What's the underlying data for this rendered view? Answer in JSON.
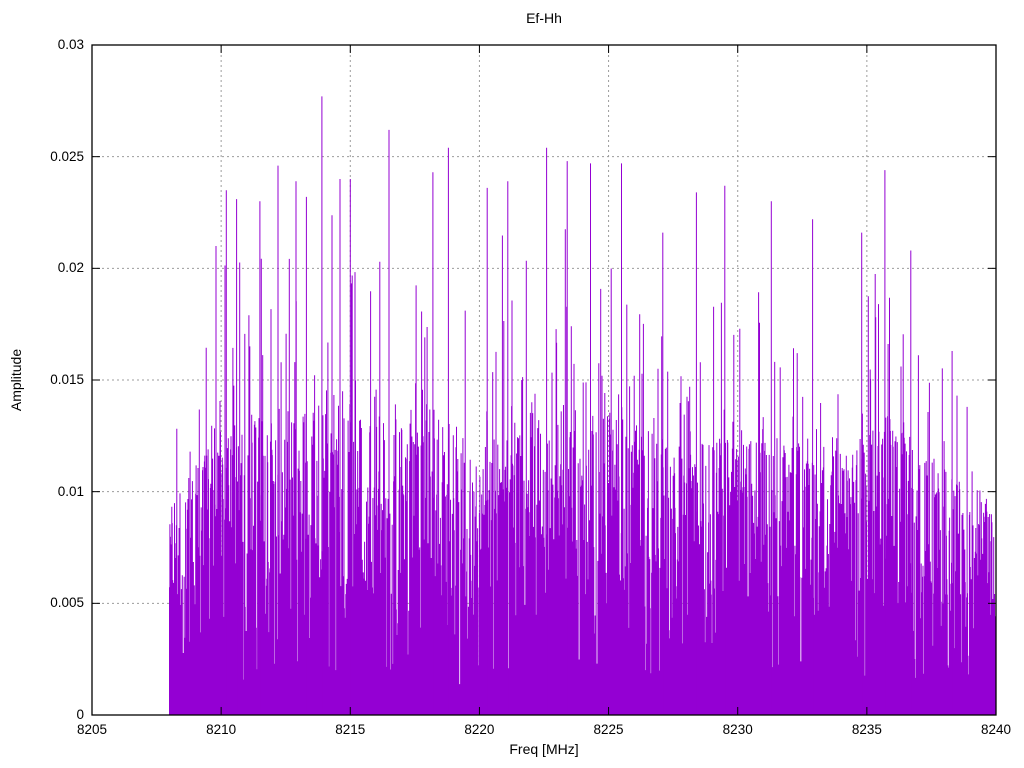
{
  "chart_data": {
    "type": "impulses",
    "title": "Ef-Hh",
    "xlabel": "Freq [MHz]",
    "ylabel": "Amplitude",
    "xlim": [
      8205,
      8240
    ],
    "ylim": [
      0,
      0.03
    ],
    "xticks": {
      "values": [
        8205,
        8210,
        8215,
        8220,
        8225,
        8230,
        8235,
        8240
      ],
      "labels": [
        "8205",
        "8210",
        "8215",
        "8220",
        "8225",
        "8230",
        "8235",
        "8240"
      ]
    },
    "yticks": {
      "values": [
        0,
        0.005,
        0.01,
        0.015,
        0.02,
        0.025,
        0.03
      ],
      "labels": [
        "0",
        "0.005",
        "0.01",
        "0.015",
        "0.02",
        "0.025",
        "0.03"
      ]
    },
    "grid": true,
    "legend": "none",
    "series_color": "#9400D3",
    "grid_color": "#9c9c9c",
    "axis_color": "#000000",
    "signal_band": [
      8208,
      8240
    ],
    "envelope": {
      "freq": [
        8208,
        8209,
        8210,
        8211,
        8212,
        8213,
        8214,
        8215,
        8216,
        8217,
        8218,
        8219,
        8220,
        8221,
        8222,
        8223,
        8224,
        8225,
        8226,
        8227,
        8228,
        8229,
        8230,
        8231,
        8232,
        8233,
        8234,
        8235,
        8236,
        8237,
        8238,
        8239,
        8240
      ],
      "body": [
        0.01,
        0.0115,
        0.0125,
        0.013,
        0.0135,
        0.0135,
        0.014,
        0.0135,
        0.013,
        0.013,
        0.014,
        0.0135,
        0.013,
        0.013,
        0.0135,
        0.013,
        0.013,
        0.0135,
        0.013,
        0.0125,
        0.013,
        0.0125,
        0.0125,
        0.013,
        0.012,
        0.012,
        0.0125,
        0.013,
        0.0135,
        0.012,
        0.011,
        0.01,
        0.009
      ],
      "ceiling": [
        0.013,
        0.015,
        0.021,
        0.021,
        0.022,
        0.022,
        0.023,
        0.022,
        0.022,
        0.021,
        0.022,
        0.022,
        0.021,
        0.022,
        0.022,
        0.022,
        0.022,
        0.022,
        0.02,
        0.019,
        0.021,
        0.021,
        0.02,
        0.021,
        0.019,
        0.019,
        0.02,
        0.02,
        0.022,
        0.019,
        0.016,
        0.014,
        0.012
      ]
    },
    "peaks": [
      [
        8209.8,
        0.021
      ],
      [
        8210.2,
        0.0235
      ],
      [
        8210.6,
        0.0231
      ],
      [
        8211.5,
        0.023
      ],
      [
        8212.2,
        0.0246
      ],
      [
        8212.9,
        0.0239
      ],
      [
        8213.3,
        0.0232
      ],
      [
        8213.9,
        0.0277
      ],
      [
        8214.6,
        0.024
      ],
      [
        8215.0,
        0.024
      ],
      [
        8216.5,
        0.0262
      ],
      [
        8218.2,
        0.0243
      ],
      [
        8218.8,
        0.0254
      ],
      [
        8220.3,
        0.0236
      ],
      [
        8221.1,
        0.0239
      ],
      [
        8222.6,
        0.0254
      ],
      [
        8223.4,
        0.0248
      ],
      [
        8224.3,
        0.0247
      ],
      [
        8225.5,
        0.0247
      ],
      [
        8227.1,
        0.0216
      ],
      [
        8228.4,
        0.0234
      ],
      [
        8229.5,
        0.0237
      ],
      [
        8231.3,
        0.023
      ],
      [
        8232.9,
        0.0222
      ],
      [
        8234.8,
        0.0216
      ],
      [
        8235.7,
        0.0244
      ],
      [
        8236.7,
        0.0208
      ],
      [
        8238.3,
        0.0163
      ]
    ],
    "max_peak": {
      "freq": 8213.9,
      "amplitude": 0.0277
    }
  }
}
